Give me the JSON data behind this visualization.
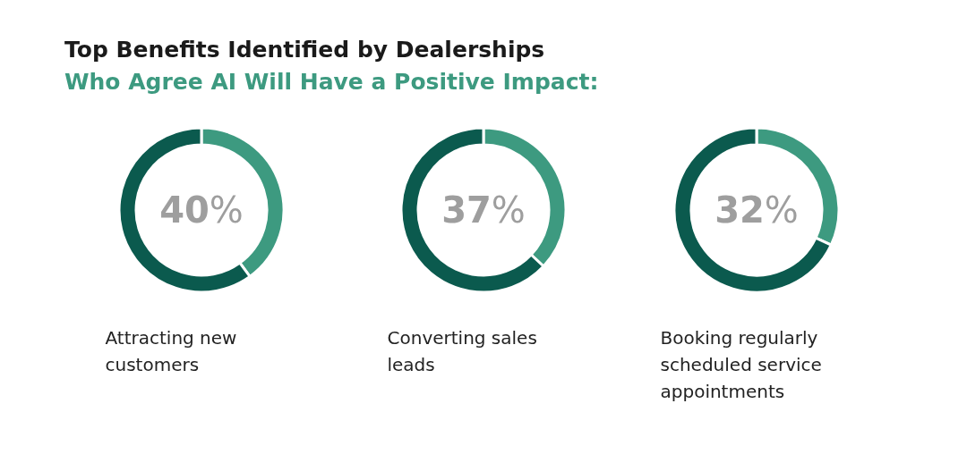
{
  "chart_data": [
    {
      "type": "donut",
      "title": "Top Benefits Identified by Dealerships",
      "subtitle": "Who Agree AI Will Have a Positive Impact:",
      "xlabel": "Attracting new customers",
      "categories": [
        null,
        null
      ],
      "values": [
        40,
        60
      ],
      "colors": [
        "#3d9a80",
        "#0b5a4e"
      ],
      "value_labels": [
        "40%",
        null
      ]
    },
    {
      "type": "donut",
      "xlabel": "Converting sales leads",
      "categories": [
        null,
        null
      ],
      "values": [
        37,
        63
      ],
      "colors": [
        "#3d9a80",
        "#0b5a4e"
      ],
      "value_labels": [
        "37%",
        null
      ]
    },
    {
      "type": "donut",
      "xlabel": "Booking regularly scheduled service appointments",
      "categories": [
        null,
        null
      ],
      "values": [
        32,
        68
      ],
      "colors": [
        "#3d9a80",
        "#0b5a4e"
      ],
      "value_labels": [
        "32%",
        null
      ]
    }
  ]
}
